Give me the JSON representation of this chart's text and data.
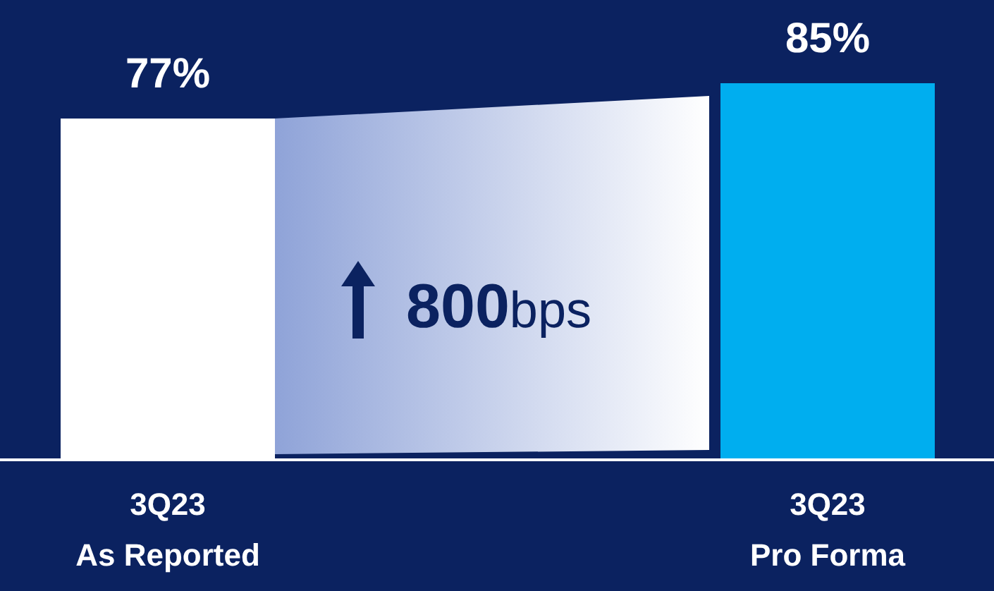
{
  "chart_data": {
    "type": "bar",
    "categories": [
      "3Q23\nAs Reported",
      "3Q23\nPro Forma"
    ],
    "values": [
      77,
      85
    ],
    "colors": [
      "#ffffff",
      "#00aeef"
    ],
    "value_labels": [
      "77%",
      "85%"
    ],
    "annotations": [
      "800bps"
    ]
  }
}
